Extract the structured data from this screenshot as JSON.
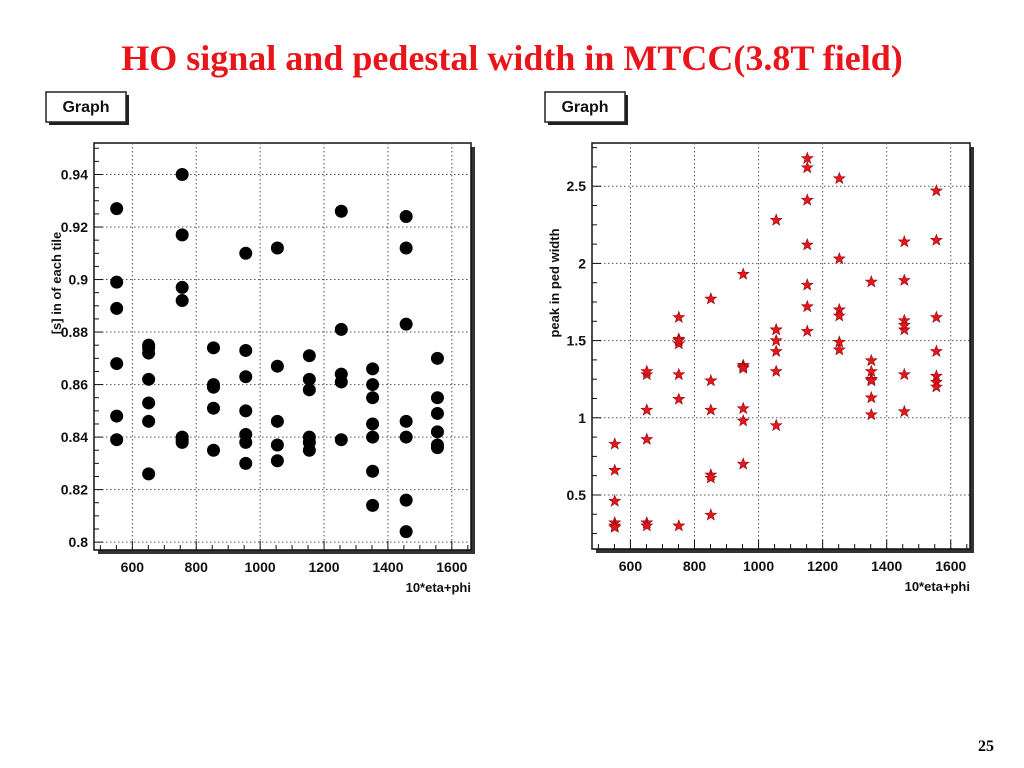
{
  "slide": {
    "title": "HO signal and pedestal width in MTCC(3.8T field)",
    "page_number": "25"
  },
  "chart_data": [
    {
      "type": "scatter",
      "graph_label": "Graph",
      "xlabel": "10*eta+phi",
      "ylabel": "[s] in of each tile",
      "xlim": [
        480,
        1660
      ],
      "ylim": [
        0.797,
        0.952
      ],
      "xticks": [
        600,
        800,
        1000,
        1200,
        1400,
        1600
      ],
      "yticks": [
        0.8,
        0.82,
        0.84,
        0.86,
        0.88,
        0.9,
        0.92,
        0.94
      ],
      "ytick_labels": [
        "0.8",
        "0.82",
        "0.84",
        "0.86",
        "0.88",
        "0.9",
        "0.92",
        "0.94"
      ],
      "grid": true,
      "marker": "circle",
      "marker_color": "#000000",
      "series": [
        {
          "x": [
            551,
            551,
            551,
            551,
            551,
            551,
            651,
            651,
            651,
            651,
            651,
            651,
            651,
            756,
            756,
            756,
            756,
            756,
            756,
            756,
            854,
            854,
            854,
            854,
            854,
            955,
            955,
            955,
            955,
            955,
            955,
            955,
            1054,
            1054,
            1054,
            1054,
            1054,
            1154,
            1154,
            1154,
            1154,
            1154,
            1154,
            1254,
            1254,
            1254,
            1254,
            1254,
            1352,
            1352,
            1352,
            1352,
            1352,
            1352,
            1352,
            1457,
            1457,
            1457,
            1457,
            1457,
            1457,
            1457,
            1555,
            1555,
            1555,
            1555,
            1555,
            1555
          ],
          "y": [
            0.927,
            0.899,
            0.889,
            0.868,
            0.848,
            0.839,
            0.875,
            0.872,
            0.862,
            0.853,
            0.846,
            0.826,
            0.874,
            0.94,
            0.917,
            0.897,
            0.892,
            0.84,
            0.839,
            0.838,
            0.874,
            0.86,
            0.851,
            0.835,
            0.859,
            0.91,
            0.873,
            0.863,
            0.85,
            0.838,
            0.83,
            0.841,
            0.912,
            0.867,
            0.846,
            0.837,
            0.831,
            0.871,
            0.862,
            0.858,
            0.84,
            0.838,
            0.835,
            0.926,
            0.881,
            0.864,
            0.861,
            0.839,
            0.866,
            0.86,
            0.855,
            0.845,
            0.827,
            0.814,
            0.84,
            0.924,
            0.912,
            0.883,
            0.846,
            0.816,
            0.804,
            0.84,
            0.87,
            0.855,
            0.849,
            0.842,
            0.837,
            0.836
          ]
        }
      ]
    },
    {
      "type": "scatter",
      "graph_label": "Graph",
      "xlabel": "10*eta+phi",
      "ylabel": "peak in ped width",
      "xlim": [
        480,
        1660
      ],
      "ylim": [
        0.15,
        2.78
      ],
      "xticks": [
        600,
        800,
        1000,
        1200,
        1400,
        1600
      ],
      "yticks": [
        0.5,
        1,
        1.5,
        2,
        2.5
      ],
      "ytick_labels": [
        "0.5",
        "1",
        "1.5",
        "2",
        "2.5"
      ],
      "grid": true,
      "marker": "star",
      "marker_color": "#e8151b",
      "series": [
        {
          "x": [
            551,
            551,
            551,
            551,
            551,
            551,
            651,
            651,
            651,
            651,
            651,
            651,
            751,
            751,
            751,
            751,
            751,
            751,
            751,
            851,
            851,
            851,
            851,
            851,
            851,
            952,
            952,
            952,
            952,
            952,
            952,
            952,
            1055,
            1055,
            1055,
            1055,
            1055,
            1055,
            1055,
            1152,
            1152,
            1152,
            1152,
            1152,
            1152,
            1152,
            1252,
            1252,
            1252,
            1252,
            1252,
            1252,
            1352,
            1352,
            1352,
            1352,
            1352,
            1352,
            1352,
            1455,
            1455,
            1455,
            1455,
            1455,
            1455,
            1455,
            1555,
            1555,
            1555,
            1555,
            1555,
            1555,
            1555
          ],
          "y": [
            0.83,
            0.66,
            0.46,
            0.32,
            0.3,
            0.29,
            1.28,
            1.05,
            0.86,
            0.32,
            0.3,
            1.3,
            1.65,
            1.51,
            1.48,
            1.28,
            1.12,
            0.3,
            1.5,
            1.77,
            1.24,
            1.05,
            0.63,
            0.61,
            0.37,
            1.93,
            1.34,
            1.33,
            1.06,
            0.98,
            0.7,
            1.32,
            2.28,
            1.57,
            1.5,
            1.43,
            1.3,
            0.95,
            1.57,
            2.68,
            2.62,
            2.41,
            2.12,
            1.86,
            1.72,
            1.56,
            2.55,
            2.03,
            1.7,
            1.66,
            1.49,
            1.44,
            1.88,
            1.37,
            1.3,
            1.25,
            1.13,
            1.02,
            1.24,
            2.14,
            1.89,
            1.63,
            1.57,
            1.28,
            1.04,
            1.6,
            2.47,
            2.15,
            1.65,
            1.43,
            1.27,
            1.23,
            1.2
          ]
        }
      ]
    }
  ]
}
